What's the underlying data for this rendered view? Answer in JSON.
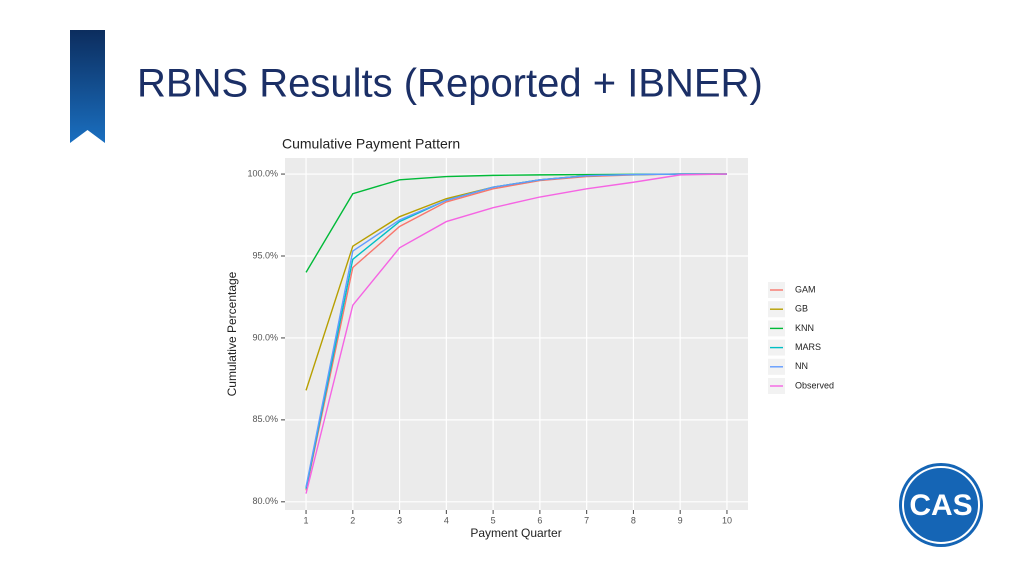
{
  "slide_title": "RBNS Results (Reported + IBNER)",
  "logo": "CAS",
  "chart_data": {
    "type": "line",
    "title": "Cumulative Payment Pattern",
    "x_label": "Payment Quarter",
    "y_label": "Cumulative Percentage",
    "x": [
      1,
      2,
      3,
      4,
      5,
      6,
      7,
      8,
      9,
      10
    ],
    "xlim": [
      0.55,
      10.45
    ],
    "xticks": [
      1,
      2,
      3,
      4,
      5,
      6,
      7,
      8,
      9,
      10
    ],
    "ylim": [
      79.5,
      100.98
    ],
    "yticks": [
      {
        "value": 80,
        "label": "80.0%"
      },
      {
        "value": 85,
        "label": "85.0%"
      },
      {
        "value": 90,
        "label": "90.0%"
      },
      {
        "value": 95,
        "label": "95.0%"
      },
      {
        "value": 100,
        "label": "100.0%"
      }
    ],
    "grid": true,
    "legend": "right",
    "series": [
      {
        "name": "GAM",
        "color": "#F8766D",
        "values": [
          80.7,
          94.3,
          96.8,
          98.3,
          99.1,
          99.6,
          99.85,
          99.95,
          100,
          100
        ]
      },
      {
        "name": "GB",
        "color": "#B79F00",
        "values": [
          86.8,
          95.6,
          97.4,
          98.5,
          99.2,
          99.65,
          99.9,
          99.97,
          100,
          100
        ]
      },
      {
        "name": "KNN",
        "color": "#00BA38",
        "values": [
          94.0,
          98.8,
          99.65,
          99.85,
          99.92,
          99.95,
          99.97,
          99.98,
          100,
          100
        ]
      },
      {
        "name": "MARS",
        "color": "#00BFC4",
        "values": [
          80.8,
          94.8,
          97.1,
          98.4,
          99.2,
          99.65,
          99.9,
          99.97,
          100,
          100
        ]
      },
      {
        "name": "NN",
        "color": "#619CFF",
        "values": [
          80.9,
          95.3,
          97.2,
          98.4,
          99.2,
          99.65,
          99.9,
          99.97,
          100,
          100
        ]
      },
      {
        "name": "Observed",
        "color": "#F564E3",
        "values": [
          80.5,
          92.0,
          95.5,
          97.1,
          97.95,
          98.6,
          99.1,
          99.5,
          99.95,
          100
        ]
      }
    ]
  }
}
